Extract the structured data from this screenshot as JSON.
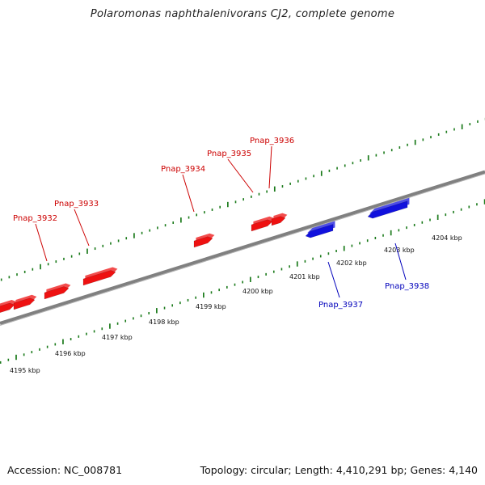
{
  "title": "Polaromonas naphthalenivorans CJ2, complete genome",
  "footer": {
    "accession": "Accession: NC_008781",
    "summary": "Topology: circular; Length: 4,410,291 bp; Genes: 4,140"
  },
  "colors": {
    "forward_gene": "#ee1111",
    "reverse_gene": "#1111dd",
    "forward_label": "#cc0000",
    "reverse_label": "#0000bb",
    "backbone": "#808080",
    "tick": "#1a7a1a"
  },
  "kbp_labels": [
    "4195 kbp",
    "4196 kbp",
    "4197 kbp",
    "4198 kbp",
    "4199 kbp",
    "4200 kbp",
    "4201 kbp",
    "4202 kbp",
    "4203 kbp",
    "4204 kbp"
  ],
  "genes": [
    {
      "name": "Pnap_3932",
      "strand": "forward"
    },
    {
      "name": "Pnap_3933",
      "strand": "forward"
    },
    {
      "name": "Pnap_3934",
      "strand": "forward"
    },
    {
      "name": "Pnap_3935",
      "strand": "forward"
    },
    {
      "name": "Pnap_3936",
      "strand": "forward"
    },
    {
      "name": "Pnap_3937",
      "strand": "reverse"
    },
    {
      "name": "Pnap_3938",
      "strand": "reverse"
    }
  ]
}
